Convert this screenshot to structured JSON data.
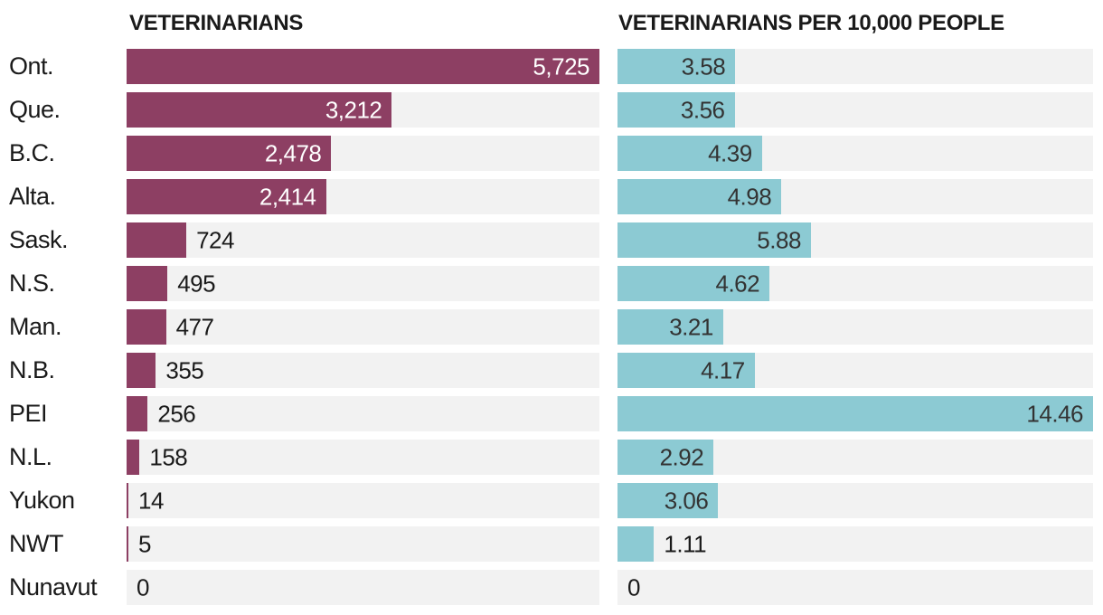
{
  "chart_data": {
    "type": "bar",
    "orientation": "horizontal",
    "grid": false,
    "legend_position": "none",
    "track_color": "#f2f2f2",
    "categories": [
      "Ont.",
      "Que.",
      "B.C.",
      "Alta.",
      "Sask.",
      "N.S.",
      "Man.",
      "N.B.",
      "PEI",
      "N.L.",
      "Yukon",
      "NWT",
      "Nunavut"
    ],
    "series": [
      {
        "name": "VETERINARIANS",
        "values": [
          5725,
          3212,
          2478,
          2414,
          724,
          495,
          477,
          355,
          256,
          158,
          14,
          5,
          0
        ],
        "labels": [
          "5,725",
          "3,212",
          "2,478",
          "2,414",
          "724",
          "495",
          "477",
          "355",
          "256",
          "158",
          "14",
          "5",
          "0"
        ],
        "axis_max": 5725,
        "bar_color": "#8d3f63",
        "inside_label_color": "#ffffff",
        "outside_label_color": "#1a1a1a"
      },
      {
        "name": "VETERINARIANS PER 10,000 PEOPLE",
        "values": [
          3.58,
          3.56,
          4.39,
          4.98,
          5.88,
          4.62,
          3.21,
          4.17,
          14.46,
          2.92,
          3.06,
          1.11,
          0
        ],
        "labels": [
          "3.58",
          "3.56",
          "4.39",
          "4.98",
          "5.88",
          "4.62",
          "3.21",
          "4.17",
          "14.46",
          "2.92",
          "3.06",
          "1.11",
          "0"
        ],
        "axis_max": 14.46,
        "bar_color": "#8ccad3",
        "inside_label_color": "#333333",
        "outside_label_color": "#1a1a1a"
      }
    ]
  }
}
